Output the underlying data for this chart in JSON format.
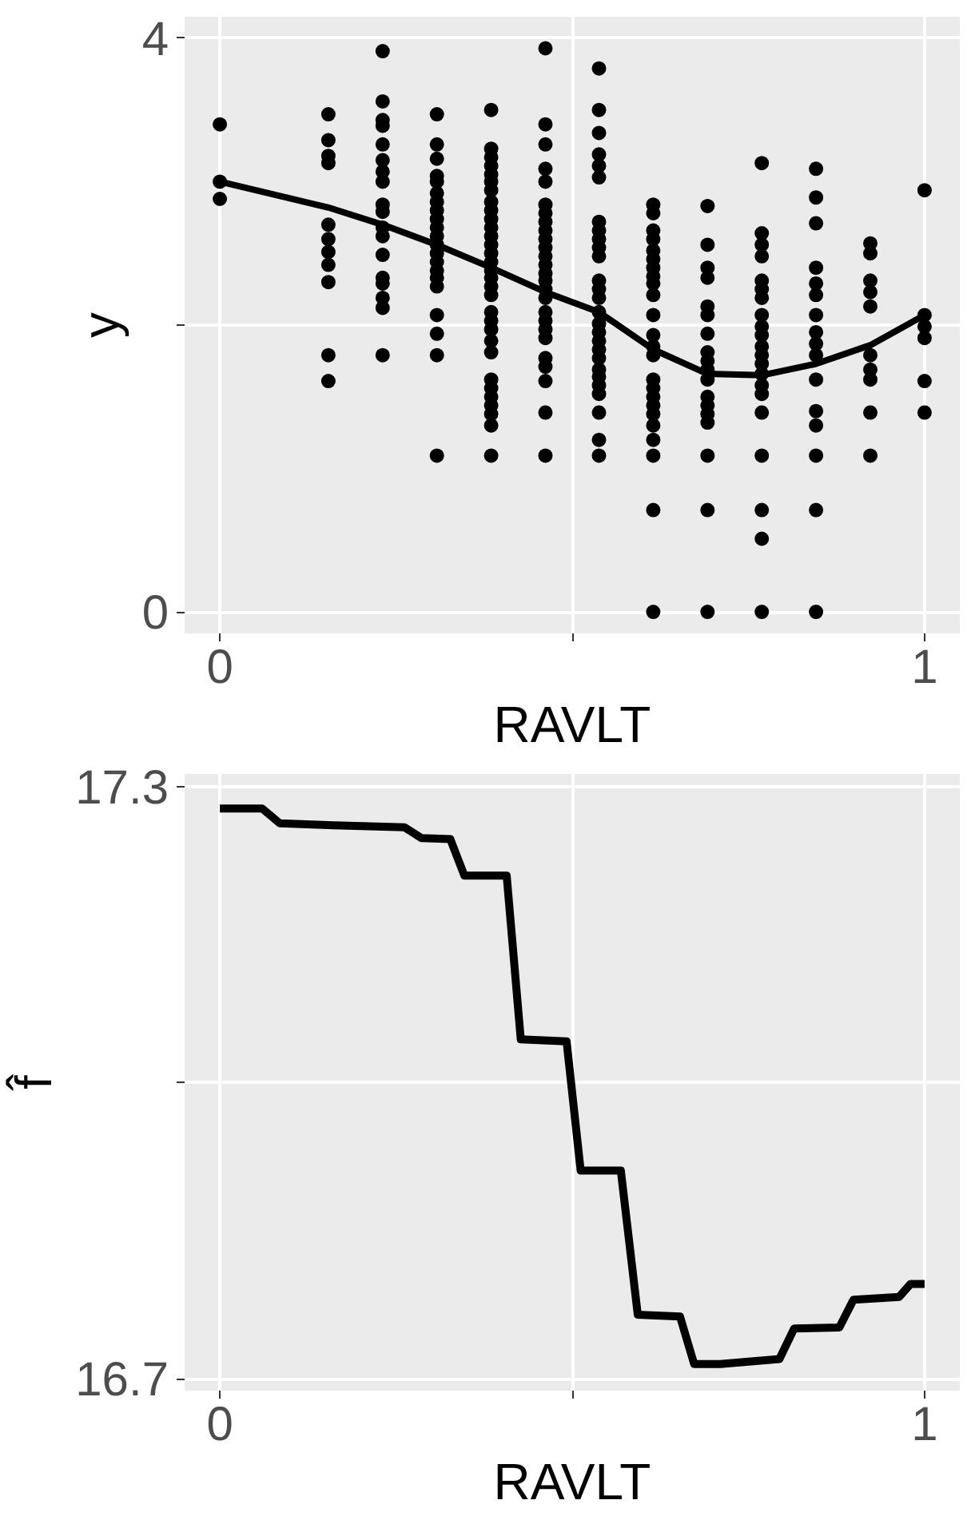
{
  "chart_data": [
    {
      "type": "scatter",
      "xlabel": "RAVLT",
      "ylabel": "y",
      "xlim": [
        -0.05,
        1.05
      ],
      "ylim": [
        -0.15,
        4.15
      ],
      "xticks": [
        0,
        {
          "value": 0.5,
          "label": null
        },
        1
      ],
      "yticks": [
        0,
        {
          "value": 2,
          "label": null
        },
        4
      ],
      "grid": true,
      "series": [
        {
          "color": "#000000",
          "marker": "circle",
          "x": [
            0,
            0,
            0,
            0.154,
            0.154,
            0.154,
            0.154,
            0.154,
            0.154,
            0.154,
            0.154,
            0.154,
            0.154,
            0.154,
            0.231,
            0.231,
            0.231,
            0.231,
            0.231,
            0.231,
            0.231,
            0.231,
            0.231,
            0.231,
            0.231,
            0.231,
            0.231,
            0.231,
            0.231,
            0.231,
            0.231,
            0.231,
            0.308,
            0.308,
            0.308,
            0.308,
            0.308,
            0.308,
            0.308,
            0.308,
            0.308,
            0.308,
            0.308,
            0.308,
            0.308,
            0.308,
            0.308,
            0.308,
            0.308,
            0.308,
            0.308,
            0.308,
            0.308,
            0.385,
            0.385,
            0.385,
            0.385,
            0.385,
            0.385,
            0.385,
            0.385,
            0.385,
            0.385,
            0.385,
            0.385,
            0.385,
            0.385,
            0.385,
            0.385,
            0.385,
            0.385,
            0.385,
            0.385,
            0.385,
            0.385,
            0.385,
            0.385,
            0.385,
            0.385,
            0.385,
            0.385,
            0.385,
            0.385,
            0.385,
            0.462,
            0.462,
            0.462,
            0.462,
            0.462,
            0.462,
            0.462,
            0.462,
            0.462,
            0.462,
            0.462,
            0.462,
            0.462,
            0.462,
            0.462,
            0.462,
            0.462,
            0.462,
            0.462,
            0.462,
            0.462,
            0.462,
            0.462,
            0.462,
            0.462,
            0.462,
            0.538,
            0.538,
            0.538,
            0.538,
            0.538,
            0.538,
            0.538,
            0.538,
            0.538,
            0.538,
            0.538,
            0.538,
            0.538,
            0.538,
            0.538,
            0.538,
            0.538,
            0.538,
            0.538,
            0.538,
            0.538,
            0.538,
            0.538,
            0.538,
            0.538,
            0.538,
            0.538,
            0.615,
            0.615,
            0.615,
            0.615,
            0.615,
            0.615,
            0.615,
            0.615,
            0.615,
            0.615,
            0.615,
            0.615,
            0.615,
            0.615,
            0.615,
            0.615,
            0.615,
            0.615,
            0.615,
            0.615,
            0.615,
            0.615,
            0.615,
            0.615,
            0.692,
            0.692,
            0.692,
            0.692,
            0.692,
            0.692,
            0.692,
            0.692,
            0.692,
            0.692,
            0.692,
            0.692,
            0.692,
            0.692,
            0.692,
            0.692,
            0.692,
            0.692,
            0.769,
            0.769,
            0.769,
            0.769,
            0.769,
            0.769,
            0.769,
            0.769,
            0.769,
            0.769,
            0.769,
            0.769,
            0.769,
            0.769,
            0.769,
            0.769,
            0.769,
            0.769,
            0.769,
            0.769,
            0.769,
            0.846,
            0.846,
            0.846,
            0.846,
            0.846,
            0.846,
            0.846,
            0.846,
            0.846,
            0.846,
            0.846,
            0.846,
            0.846,
            0.846,
            0.846,
            0.846,
            0.923,
            0.923,
            0.923,
            0.923,
            0.923,
            0.923,
            0.923,
            0.923,
            0.923,
            0.923,
            1,
            1,
            1,
            1,
            1,
            1
          ],
          "values": [
            3.4,
            3.0,
            2.88,
            3.47,
            3.29,
            3.18,
            3.13,
            2.7,
            2.6,
            2.51,
            2.42,
            2.3,
            1.79,
            1.61,
            3.91,
            3.56,
            3.43,
            3.39,
            3.26,
            3.15,
            3.07,
            3.0,
            2.84,
            2.79,
            2.68,
            2.62,
            2.49,
            2.33,
            2.29,
            2.19,
            2.12,
            1.79,
            3.47,
            3.26,
            3.16,
            3.04,
            3.0,
            2.92,
            2.86,
            2.8,
            2.74,
            2.68,
            2.62,
            2.56,
            2.5,
            2.44,
            2.38,
            2.33,
            2.27,
            2.07,
            1.94,
            1.79,
            1.09,
            3.5,
            3.23,
            3.17,
            3.11,
            3.05,
            3.0,
            2.94,
            2.86,
            2.8,
            2.74,
            2.68,
            2.62,
            2.56,
            2.5,
            2.44,
            2.38,
            2.33,
            2.27,
            2.21,
            2.09,
            2.03,
            1.97,
            1.89,
            1.81,
            1.62,
            1.56,
            1.5,
            1.44,
            1.38,
            1.3,
            1.09,
            3.93,
            3.4,
            3.26,
            3.09,
            3.0,
            2.84,
            2.78,
            2.72,
            2.66,
            2.6,
            2.54,
            2.48,
            2.42,
            2.36,
            2.31,
            2.25,
            2.19,
            2.09,
            2.03,
            1.97,
            1.91,
            1.77,
            1.71,
            1.61,
            1.39,
            1.09,
            3.79,
            3.5,
            3.34,
            3.19,
            3.11,
            3.03,
            2.72,
            2.66,
            2.6,
            2.54,
            2.48,
            2.31,
            2.25,
            2.19,
            2.09,
            2.01,
            1.95,
            1.89,
            1.83,
            1.77,
            1.69,
            1.64,
            1.58,
            1.52,
            1.39,
            1.2,
            1.09,
            2.84,
            2.78,
            2.66,
            2.6,
            2.52,
            2.46,
            2.4,
            2.34,
            2.29,
            2.21,
            2.07,
            1.93,
            1.85,
            1.79,
            1.62,
            1.56,
            1.5,
            1.44,
            1.38,
            1.3,
            1.2,
            1.09,
            0.71,
            0,
            2.83,
            2.56,
            2.4,
            2.33,
            2.13,
            2.07,
            1.94,
            1.81,
            1.75,
            1.69,
            1.62,
            1.5,
            1.44,
            1.38,
            1.32,
            1.09,
            0.71,
            0,
            3.13,
            2.64,
            2.56,
            2.48,
            2.31,
            2.25,
            2.19,
            2.07,
            1.99,
            1.93,
            1.85,
            1.79,
            1.73,
            1.66,
            1.58,
            1.52,
            1.39,
            1.09,
            0.71,
            0.51,
            0,
            3.09,
            2.89,
            2.71,
            2.4,
            2.29,
            2.21,
            2.07,
            1.95,
            1.87,
            1.79,
            1.62,
            1.4,
            1.3,
            1.09,
            0.71,
            0,
            2.57,
            2.5,
            2.31,
            2.23,
            2.13,
            1.79,
            1.69,
            1.62,
            1.39,
            1.09,
            2.94,
            2.07,
            1.99,
            1.91,
            1.61,
            1.39
          ]
        },
        {
          "type": "line",
          "color": "#000000",
          "x": [
            0,
            0.154,
            0.231,
            0.308,
            0.385,
            0.462,
            0.538,
            0.615,
            0.692,
            0.769,
            0.846,
            0.923,
            1
          ],
          "values": [
            3.0,
            2.82,
            2.7,
            2.56,
            2.4,
            2.23,
            2.09,
            1.83,
            1.66,
            1.65,
            1.73,
            1.86,
            2.07
          ]
        }
      ]
    },
    {
      "type": "line",
      "xlabel": "RAVLT",
      "ylabel": "f̂",
      "xlim": [
        -0.05,
        1.05
      ],
      "ylim": [
        16.688,
        17.313
      ],
      "xticks": [
        0,
        {
          "value": 0.5,
          "label": null
        },
        1
      ],
      "yticks": [
        16.7,
        {
          "value": 17.0,
          "label": null
        },
        17.3
      ],
      "grid": true,
      "series": [
        {
          "color": "#000000",
          "x": [
            0,
            0.06,
            0.085,
            0.161,
            0.262,
            0.286,
            0.327,
            0.347,
            0.407,
            0.427,
            0.492,
            0.512,
            0.569,
            0.593,
            0.653,
            0.673,
            0.71,
            0.794,
            0.815,
            0.879,
            0.899,
            0.964,
            0.98,
            1.0
          ],
          "values": [
            17.278,
            17.278,
            17.263,
            17.261,
            17.259,
            17.248,
            17.247,
            17.21,
            17.21,
            17.044,
            17.042,
            16.911,
            16.911,
            16.765,
            16.763,
            16.715,
            16.715,
            16.72,
            16.751,
            16.752,
            16.78,
            16.783,
            16.796,
            16.796
          ]
        }
      ]
    }
  ]
}
